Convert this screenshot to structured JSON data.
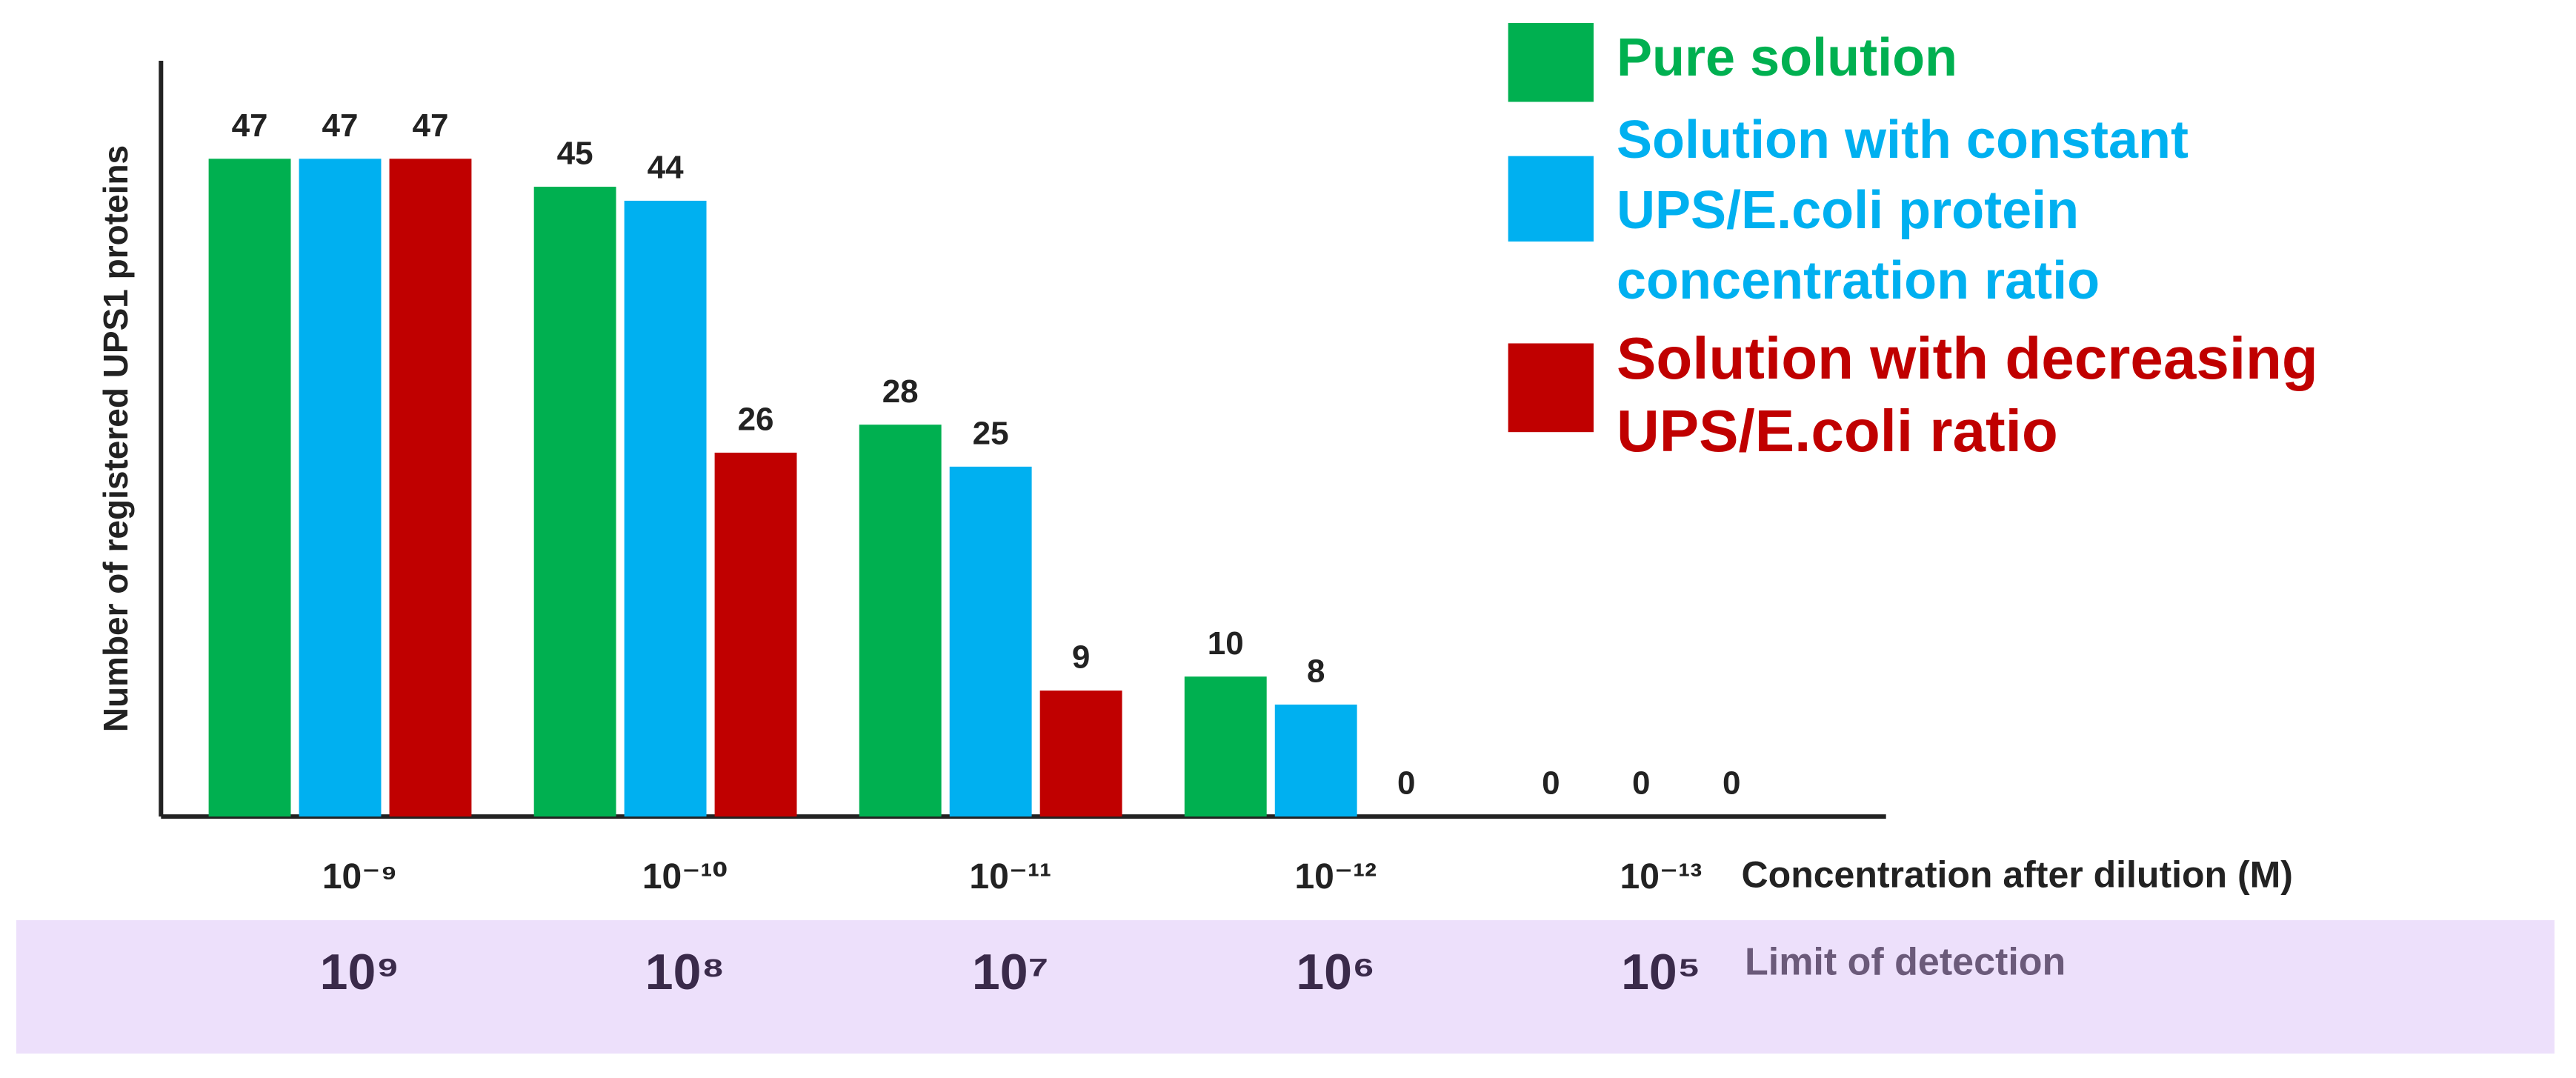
{
  "chart_data": {
    "type": "bar",
    "y_label": "Number of registered UPS1 proteins",
    "x_label": "Concentration after dilution (M)",
    "categories": [
      "10⁻⁹",
      "10⁻¹⁰",
      "10⁻¹¹",
      "10⁻¹²",
      "10⁻¹³"
    ],
    "series": [
      {
        "name": "Pure solution",
        "color": "#00b050",
        "values": [
          47,
          45,
          28,
          10,
          0
        ]
      },
      {
        "name": "Solution with constant UPS/E.coli protein concentration ratio",
        "color": "#00b0f0",
        "values": [
          47,
          44,
          25,
          8,
          0
        ]
      },
      {
        "name": "Solution with decreasing UPS/E.coli ratio",
        "color": "#c00000",
        "values": [
          47,
          26,
          9,
          0,
          0
        ]
      }
    ],
    "ylim": [
      0,
      54
    ],
    "limit_of_detection": {
      "label": "Limit of detection",
      "values": [
        "10⁹",
        "10⁸",
        "10⁷",
        "10⁶",
        "10⁵"
      ]
    }
  }
}
